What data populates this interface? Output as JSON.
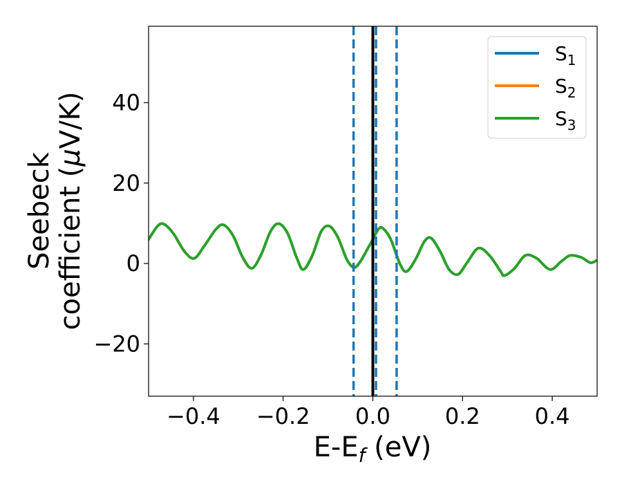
{
  "chart_data": {
    "type": "line",
    "xlabel": {
      "main": "E-E",
      "sub": "f",
      "unit": " (eV)"
    },
    "ylabel": {
      "line1": "Seebeck",
      "line2_text": "coefficient  (",
      "mu": "μ",
      "line2_unit": "V/K)"
    },
    "xlim": [
      -0.5,
      0.5
    ],
    "ylim": [
      -33,
      59
    ],
    "xticks": [
      -0.4,
      -0.2,
      0.0,
      0.2,
      0.4
    ],
    "xtick_labels": [
      "−0.4",
      "−0.2",
      "0.0",
      "0.2",
      "0.4"
    ],
    "yticks": [
      -20,
      0,
      20,
      40
    ],
    "ytick_labels": [
      "−20",
      "0",
      "20",
      "40"
    ],
    "legend_position": "top-right",
    "series": [
      {
        "name": "S",
        "subscript": "1",
        "color": "#1f77b4"
      },
      {
        "name": "S",
        "subscript": "2",
        "color": "#ff7f0e"
      },
      {
        "name": "S",
        "subscript": "3",
        "color": "#2ca02c",
        "x": [
          -0.5,
          -0.48,
          -0.466,
          -0.445,
          -0.42,
          -0.398,
          -0.375,
          -0.35,
          -0.333,
          -0.312,
          -0.29,
          -0.27,
          -0.25,
          -0.228,
          -0.21,
          -0.19,
          -0.17,
          -0.155,
          -0.135,
          -0.115,
          -0.097,
          -0.078,
          -0.058,
          -0.042,
          -0.028,
          -0.01,
          0.0,
          0.012,
          0.022,
          0.04,
          0.06,
          0.075,
          0.095,
          0.115,
          0.13,
          0.15,
          0.17,
          0.19,
          0.21,
          0.235,
          0.26,
          0.285,
          0.293,
          0.315,
          0.34,
          0.365,
          0.395,
          0.42,
          0.44,
          0.465,
          0.485,
          0.5
        ],
        "y": [
          6.0,
          9.3,
          9.8,
          7.5,
          3.0,
          1.3,
          4.5,
          8.5,
          9.6,
          7.0,
          1.5,
          -1.2,
          2.0,
          8.0,
          9.9,
          7.5,
          1.5,
          -1.5,
          2.0,
          8.0,
          9.3,
          6.5,
          1.0,
          -1.0,
          0.5,
          4.0,
          6.0,
          8.5,
          8.8,
          6.0,
          0.0,
          -2.0,
          1.0,
          5.5,
          6.3,
          3.0,
          -1.5,
          -2.7,
          0.2,
          3.8,
          2.0,
          -2.0,
          -3.0,
          -1.3,
          2.0,
          1.3,
          -1.5,
          0.5,
          2.0,
          1.5,
          0.2,
          0.8
        ]
      }
    ],
    "vlines": [
      {
        "x": -0.043,
        "style": "dashed",
        "color": "#1f77b4"
      },
      {
        "x": 0.0,
        "style": "solid",
        "color": "#000000"
      },
      {
        "x": 0.007,
        "style": "dashed",
        "color": "#1f77b4"
      },
      {
        "x": 0.053,
        "style": "dashed",
        "color": "#1f77b4"
      }
    ]
  }
}
